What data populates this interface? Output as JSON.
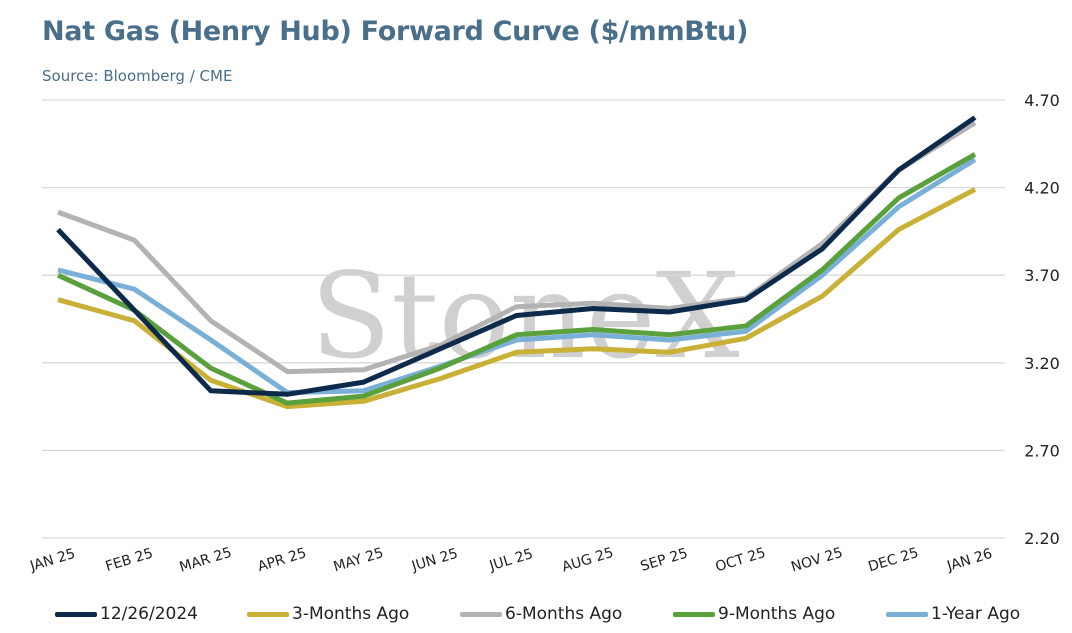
{
  "title": "Nat Gas (Henry Hub) Forward Curve ($/mmBtu)",
  "subtitle": "Source: Bloomberg / CME",
  "watermark": "StoneX",
  "chart_data": {
    "type": "line",
    "categories": [
      "JAN 25",
      "FEB 25",
      "MAR 25",
      "APR 25",
      "MAY 25",
      "JUN 25",
      "JUL 25",
      "AUG 25",
      "SEP 25",
      "OCT 25",
      "NOV 25",
      "DEC 25",
      "JAN 26"
    ],
    "yticks": [
      "4.70",
      "4.20",
      "3.70",
      "3.20",
      "2.70",
      "2.20"
    ],
    "ylim": [
      2.2,
      4.7
    ],
    "grid": true,
    "legend_position": "bottom",
    "y_axis_side": "right",
    "series": [
      {
        "name": "12/26/2024",
        "color": "#0d2a4a",
        "values": [
          3.96,
          3.5,
          3.04,
          3.02,
          3.09,
          3.28,
          3.47,
          3.51,
          3.49,
          3.56,
          3.85,
          4.3,
          4.6
        ]
      },
      {
        "name": "3-Months Ago",
        "color": "#c9b037",
        "values": [
          3.56,
          3.44,
          3.1,
          2.95,
          2.98,
          3.11,
          3.26,
          3.28,
          3.26,
          3.34,
          3.58,
          3.96,
          4.19
        ]
      },
      {
        "name": "6-Months Ago",
        "color": "#b3b3b3",
        "values": [
          4.06,
          3.9,
          3.44,
          3.15,
          3.16,
          3.3,
          3.52,
          3.54,
          3.51,
          3.57,
          3.88,
          4.3,
          4.57
        ]
      },
      {
        "name": "9-Months Ago",
        "color": "#5aa03c",
        "values": [
          3.7,
          3.5,
          3.17,
          2.97,
          3.01,
          3.17,
          3.36,
          3.39,
          3.36,
          3.41,
          3.73,
          4.14,
          4.39
        ]
      },
      {
        "name": "1-Year Ago",
        "color": "#7ab0d8",
        "values": [
          3.73,
          3.62,
          3.33,
          3.03,
          3.04,
          3.18,
          3.33,
          3.36,
          3.33,
          3.38,
          3.7,
          4.09,
          4.36
        ]
      }
    ]
  }
}
